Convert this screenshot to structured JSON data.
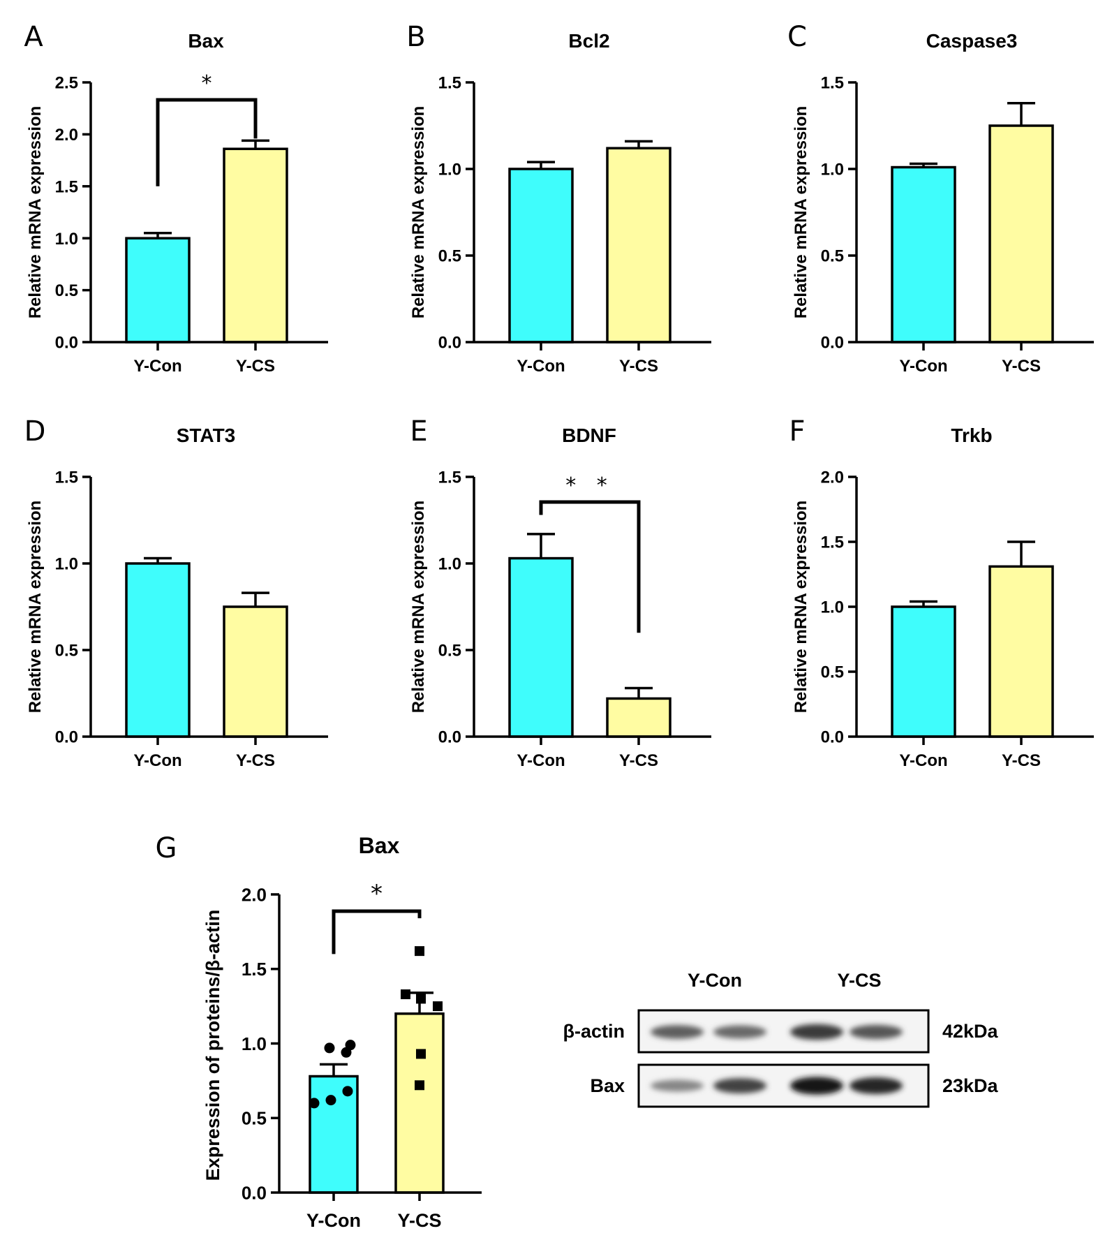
{
  "colors": {
    "control": "#3ffdfc",
    "treated": "#fffca2",
    "ink": "#000000"
  },
  "ylabel_mrna": "Relative mRNA expression",
  "chart_data": [
    {
      "panel": "A",
      "type": "bar",
      "title": "Bax",
      "categories": [
        "Y-Con",
        "Y-CS"
      ],
      "values": [
        1.0,
        1.86
      ],
      "errors": [
        0.05,
        0.08
      ],
      "ylim": [
        0,
        2.5
      ],
      "ticks": [
        "0.0",
        "0.5",
        "1.0",
        "1.5",
        "2.0",
        "2.5"
      ],
      "sig": "*"
    },
    {
      "panel": "B",
      "type": "bar",
      "title": "Bcl2",
      "categories": [
        "Y-Con",
        "Y-CS"
      ],
      "values": [
        1.0,
        1.12
      ],
      "errors": [
        0.04,
        0.04
      ],
      "ylim": [
        0,
        1.5
      ],
      "ticks": [
        "0.0",
        "0.5",
        "1.0",
        "1.5"
      ]
    },
    {
      "panel": "C",
      "type": "bar",
      "title": "Caspase3",
      "categories": [
        "Y-Con",
        "Y-CS"
      ],
      "values": [
        1.01,
        1.25
      ],
      "errors": [
        0.02,
        0.13
      ],
      "ylim": [
        0,
        1.5
      ],
      "ticks": [
        "0.0",
        "0.5",
        "1.0",
        "1.5"
      ]
    },
    {
      "panel": "D",
      "type": "bar",
      "title": "STAT3",
      "categories": [
        "Y-Con",
        "Y-CS"
      ],
      "values": [
        1.0,
        0.75
      ],
      "errors": [
        0.03,
        0.08
      ],
      "ylim": [
        0,
        1.5
      ],
      "ticks": [
        "0.0",
        "0.5",
        "1.0",
        "1.5"
      ]
    },
    {
      "panel": "E",
      "type": "bar",
      "title": "BDNF",
      "categories": [
        "Y-Con",
        "Y-CS"
      ],
      "values": [
        1.03,
        0.22
      ],
      "errors": [
        0.14,
        0.06
      ],
      "ylim": [
        0,
        1.5
      ],
      "ticks": [
        "0.0",
        "0.5",
        "1.0",
        "1.5"
      ],
      "sig": "* *"
    },
    {
      "panel": "F",
      "type": "bar",
      "title": "Trkb",
      "categories": [
        "Y-Con",
        "Y-CS"
      ],
      "values": [
        1.0,
        1.31
      ],
      "errors": [
        0.04,
        0.19
      ],
      "ylim": [
        0,
        2.0
      ],
      "ticks": [
        "0.0",
        "0.5",
        "1.0",
        "1.5",
        "2.0"
      ]
    },
    {
      "panel": "G",
      "type": "bar",
      "title": "Bax",
      "categories": [
        "Y-Con",
        "Y-CS"
      ],
      "values": [
        0.78,
        1.2
      ],
      "errors": [
        0.08,
        0.14
      ],
      "ylim": [
        0,
        2.0
      ],
      "ticks": [
        "0.0",
        "0.5",
        "1.0",
        "1.5",
        "2.0"
      ],
      "sig": "*",
      "ylabel": "Expression of proteins/β-actin",
      "points": [
        [
          0.6,
          0.62,
          0.68,
          0.97,
          0.99,
          0.94
        ],
        [
          1.62,
          1.33,
          1.3,
          1.25,
          0.93,
          0.72
        ]
      ]
    }
  ],
  "blot": {
    "lanes": [
      "Y-Con",
      "Y-CS"
    ],
    "rows": [
      {
        "label": "β-actin",
        "size": "42kDa",
        "intensity": [
          0.55,
          0.5,
          0.75,
          0.6
        ]
      },
      {
        "label": "Bax",
        "size": "23kDa",
        "intensity": [
          0.35,
          0.7,
          0.95,
          0.85
        ]
      }
    ]
  }
}
